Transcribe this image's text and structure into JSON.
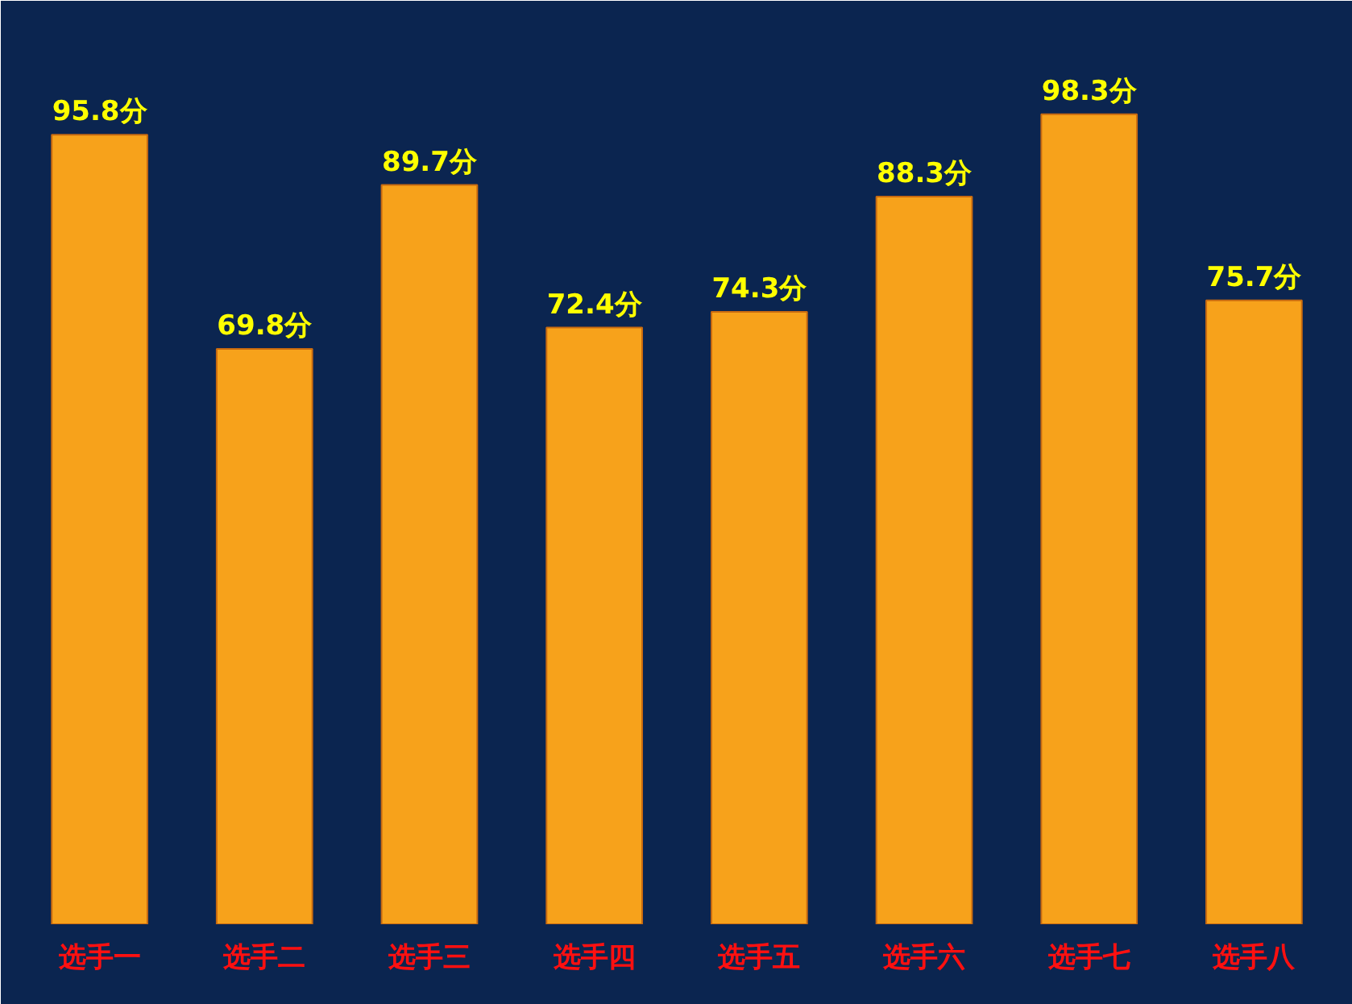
{
  "chart_data": {
    "type": "bar",
    "categories": [
      "选手一",
      "选手二",
      "选手三",
      "选手四",
      "选手五",
      "选手六",
      "选手七",
      "选手八"
    ],
    "values": [
      95.8,
      69.8,
      89.7,
      72.4,
      74.3,
      88.3,
      98.3,
      75.7
    ],
    "value_labels": [
      "95.8分",
      "69.8分",
      "89.7分",
      "72.4分",
      "74.3分",
      "88.3分",
      "98.3分",
      "75.7分"
    ],
    "color": "#f7a21b"
  }
}
